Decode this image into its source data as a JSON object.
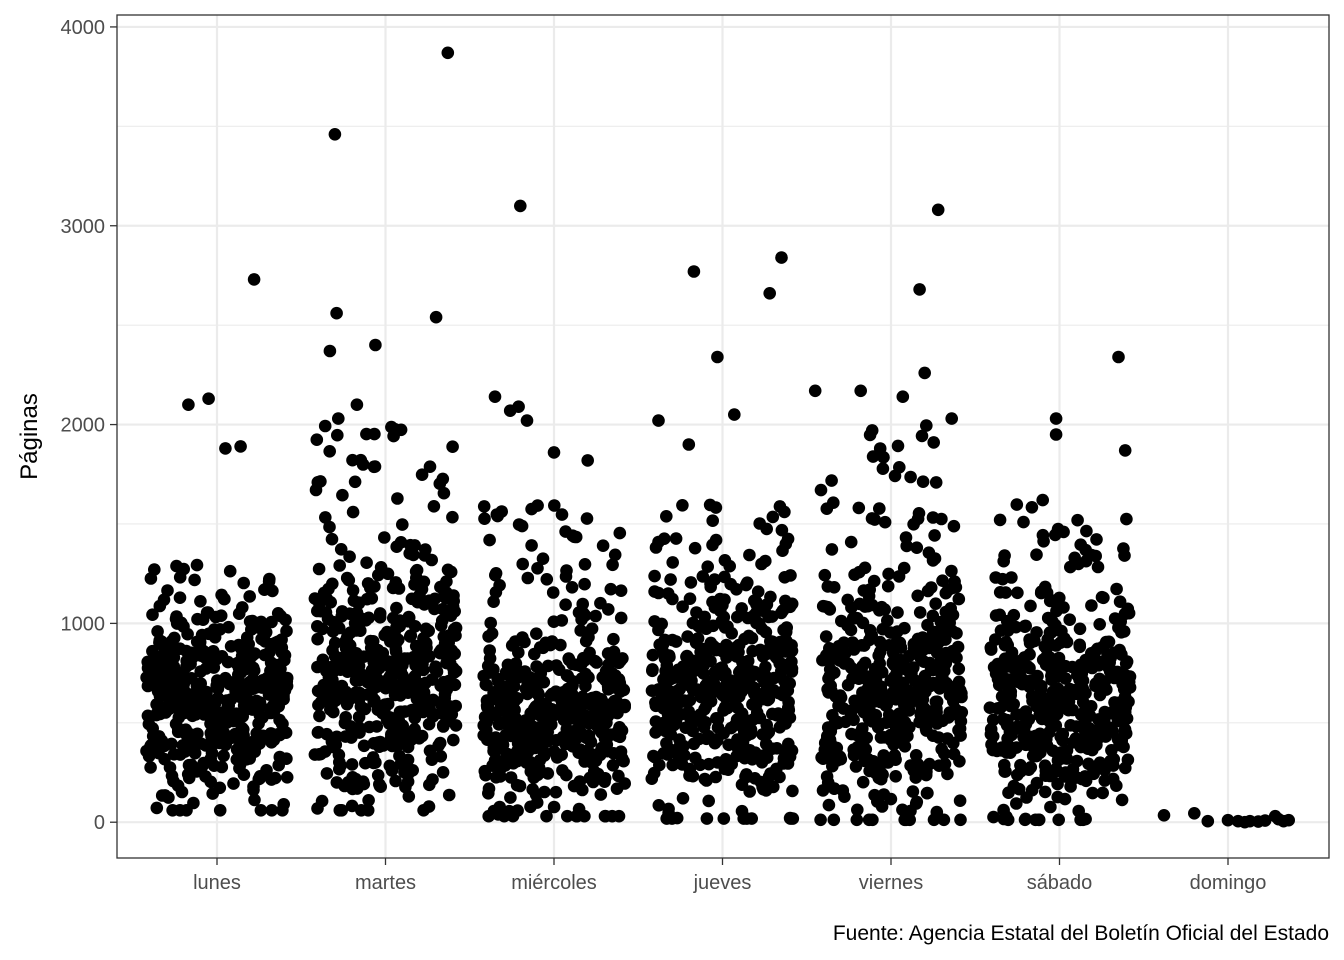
{
  "chart_data": {
    "type": "scatter",
    "subtype": "jitter strip plot",
    "title": "",
    "xlabel": "",
    "ylabel": "Páginas",
    "caption": "Fuente: Agencia Estatal del Boletín Oficial del Estado",
    "categories": [
      "lunes",
      "martes",
      "miércoles",
      "jueves",
      "viernes",
      "sábado",
      "domingo"
    ],
    "ylim": [
      -180,
      4060
    ],
    "yticks": [
      0,
      1000,
      2000,
      3000,
      4000
    ],
    "ytick_labels": [
      "0",
      "1000",
      "2000",
      "3000",
      "4000"
    ],
    "grid": true,
    "legend": "none",
    "point_color": "#000000",
    "series": [
      {
        "category": "lunes",
        "points_approx": 450,
        "typical_range": [
          100,
          1300
        ],
        "median_approx": 580,
        "outliers": [
          [
            0.05,
            1880
          ],
          [
            -0.17,
            2100
          ],
          [
            -0.05,
            2130
          ],
          [
            0.14,
            1890
          ],
          [
            0.22,
            2730
          ]
        ]
      },
      {
        "category": "martes",
        "points_approx": 470,
        "typical_range": [
          100,
          2000
        ],
        "median_approx": 700,
        "outliers": [
          [
            -0.29,
            2560
          ],
          [
            -0.33,
            2370
          ],
          [
            -0.17,
            2100
          ],
          [
            -0.06,
            2400
          ],
          [
            0.3,
            2540
          ],
          [
            -0.3,
            3460
          ],
          [
            0.37,
            3870
          ],
          [
            -0.28,
            2030
          ]
        ]
      },
      {
        "category": "miércoles",
        "points_approx": 470,
        "typical_range": [
          50,
          1600
        ],
        "median_approx": 520,
        "outliers": [
          [
            -0.35,
            2140
          ],
          [
            -0.26,
            2070
          ],
          [
            -0.21,
            2090
          ],
          [
            -0.2,
            3100
          ],
          [
            0.0,
            1860
          ],
          [
            0.2,
            1820
          ],
          [
            -0.16,
            2020
          ]
        ]
      },
      {
        "category": "jueves",
        "points_approx": 460,
        "typical_range": [
          30,
          1600
        ],
        "median_approx": 600,
        "outliers": [
          [
            -0.38,
            2020
          ],
          [
            -0.17,
            2770
          ],
          [
            -0.03,
            2340
          ],
          [
            0.07,
            2050
          ],
          [
            0.28,
            2660
          ],
          [
            0.35,
            2840
          ],
          [
            -0.2,
            1900
          ]
        ]
      },
      {
        "category": "viernes",
        "points_approx": 470,
        "typical_range": [
          20,
          2000
        ],
        "median_approx": 600,
        "outliers": [
          [
            -0.45,
            2170
          ],
          [
            -0.18,
            2170
          ],
          [
            0.07,
            2140
          ],
          [
            0.17,
            2680
          ],
          [
            0.28,
            3080
          ],
          [
            0.36,
            2030
          ],
          [
            0.2,
            2260
          ]
        ]
      },
      {
        "category": "sábado",
        "points_approx": 450,
        "typical_range": [
          20,
          1600
        ],
        "median_approx": 560,
        "outliers": [
          [
            -0.02,
            2030
          ],
          [
            -0.02,
            1950
          ],
          [
            0.35,
            2340
          ],
          [
            0.39,
            1870
          ],
          [
            -0.1,
            1620
          ]
        ]
      },
      {
        "category": "domingo",
        "points": [
          [
            -0.38,
            35
          ],
          [
            -0.2,
            45
          ],
          [
            -0.12,
            5
          ],
          [
            0.0,
            10
          ],
          [
            0.06,
            5
          ],
          [
            0.1,
            0
          ],
          [
            0.13,
            5
          ],
          [
            0.18,
            3
          ],
          [
            0.22,
            8
          ],
          [
            0.28,
            30
          ],
          [
            0.3,
            15
          ],
          [
            0.33,
            5
          ],
          [
            0.36,
            10
          ]
        ]
      }
    ]
  }
}
